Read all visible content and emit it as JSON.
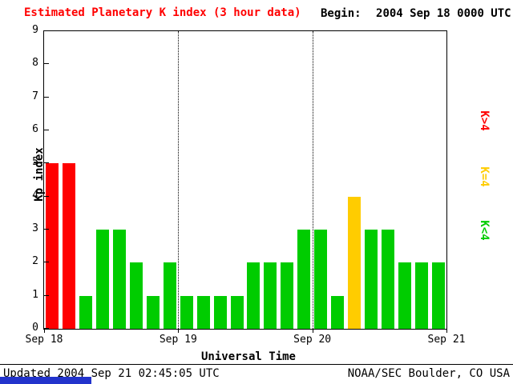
{
  "header": {
    "title": "Estimated Planetary K index (3 hour data)",
    "begin_label": "Begin:",
    "begin_value": "2004 Sep 18 0000 UTC"
  },
  "footer": {
    "updated": "Updated 2004 Sep 21 02:45:05 UTC",
    "credit": "NOAA/SEC Boulder, CO USA"
  },
  "colors": {
    "low": "#00cc00",
    "mid": "#ffcc00",
    "high": "#ff0000",
    "title": "#ff0000",
    "axis": "#000000",
    "artifact_blue": "#2233cc"
  },
  "legend": [
    {
      "label": "K>4",
      "level": "high"
    },
    {
      "label": "K=4",
      "level": "mid"
    },
    {
      "label": "K<4",
      "level": "low"
    }
  ],
  "chart_data": {
    "type": "bar",
    "title": "Estimated Planetary K index (3 hour data)",
    "xlabel": "Universal Time",
    "ylabel": "Kp index",
    "ylim": [
      0,
      9
    ],
    "yticks": [
      0,
      1,
      2,
      3,
      4,
      5,
      6,
      7,
      8,
      9
    ],
    "x_day_labels": [
      "Sep 18",
      "Sep 19",
      "Sep 20",
      "Sep 21"
    ],
    "bin_hours": 3,
    "categories": [
      "Sep 18 00-03",
      "Sep 18 03-06",
      "Sep 18 06-09",
      "Sep 18 09-12",
      "Sep 18 12-15",
      "Sep 18 15-18",
      "Sep 18 18-21",
      "Sep 18 21-24",
      "Sep 19 00-03",
      "Sep 19 03-06",
      "Sep 19 06-09",
      "Sep 19 09-12",
      "Sep 19 12-15",
      "Sep 19 15-18",
      "Sep 19 18-21",
      "Sep 19 21-24",
      "Sep 20 00-03",
      "Sep 20 03-06",
      "Sep 20 06-09",
      "Sep 20 09-12",
      "Sep 20 12-15",
      "Sep 20 15-18",
      "Sep 20 18-21",
      "Sep 20 21-24"
    ],
    "values": [
      5,
      5,
      1,
      3,
      3,
      2,
      1,
      2,
      1,
      1,
      1,
      1,
      2,
      2,
      2,
      3,
      3,
      1,
      4,
      3,
      3,
      2,
      2,
      2
    ],
    "color_rule": "green if K<4, yellow if K=4, red if K>4",
    "grid": "dotted vertical lines at day boundaries",
    "legend_position": "right, rotated 90deg"
  }
}
